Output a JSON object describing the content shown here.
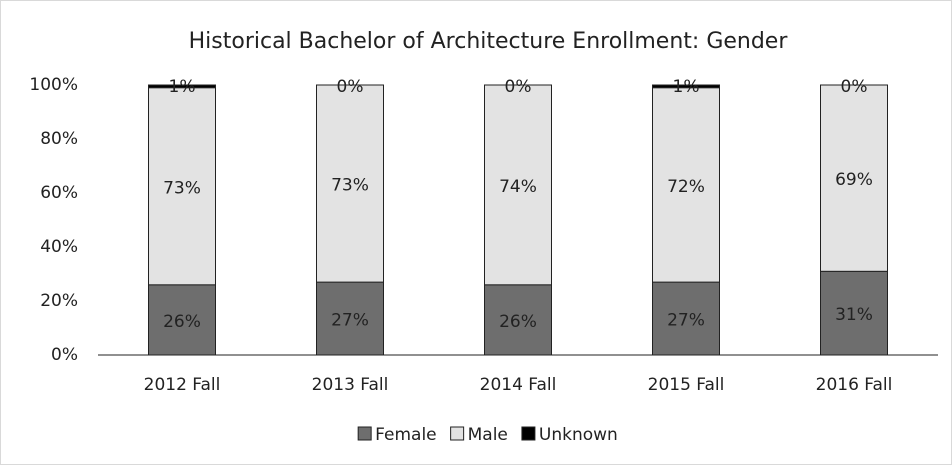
{
  "chart_data": {
    "type": "stacked_bar",
    "title": "Historical Bachelor of Architecture Enrollment: Gender",
    "categories": [
      "2012 Fall",
      "2013 Fall",
      "2014 Fall",
      "2015 Fall",
      "2016 Fall"
    ],
    "series": [
      {
        "name": "Female",
        "color": "#6e6e6e",
        "values": [
          26,
          27,
          26,
          27,
          31
        ],
        "value_labels": [
          "26%",
          "27%",
          "26%",
          "27%",
          "31%"
        ]
      },
      {
        "name": "Male",
        "color": "#e3e3e3",
        "values": [
          73,
          73,
          74,
          72,
          69
        ],
        "value_labels": [
          "73%",
          "73%",
          "74%",
          "72%",
          "69%"
        ]
      },
      {
        "name": "Unknown",
        "color": "#000000",
        "values": [
          1,
          0,
          0,
          1,
          0
        ],
        "value_labels": [
          "1%",
          "0%",
          "0%",
          "1%",
          "0%"
        ]
      }
    ],
    "ylim": [
      0,
      100
    ],
    "yticks": [
      {
        "value": 0,
        "label": "0%"
      },
      {
        "value": 20,
        "label": "20%"
      },
      {
        "value": 40,
        "label": "40%"
      },
      {
        "value": 60,
        "label": "60%"
      },
      {
        "value": 80,
        "label": "80%"
      },
      {
        "value": 100,
        "label": "100%"
      }
    ],
    "grid": false,
    "legend": "bottom"
  }
}
